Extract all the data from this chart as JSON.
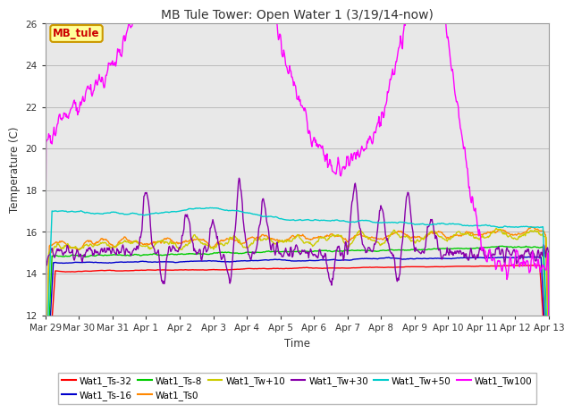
{
  "title": "MB Tule Tower: Open Water 1 (3/19/14-now)",
  "xlabel": "Time",
  "ylabel": "Temperature (C)",
  "ylim": [
    12,
    26
  ],
  "yticks": [
    12,
    14,
    16,
    18,
    20,
    22,
    24,
    26
  ],
  "x_labels": [
    "Mar 29",
    "Mar 30",
    "Mar 31",
    "Apr 1",
    "Apr 2",
    "Apr 3",
    "Apr 4",
    "Apr 5",
    "Apr 6",
    "Apr 7",
    "Apr 8",
    "Apr 9",
    "Apr 10",
    "Apr 11",
    "Apr 12",
    "Apr 13"
  ],
  "background_color": "#ffffff",
  "plot_bg_color": "#e8e8e8",
  "series": [
    {
      "name": "Wat1_Ts-32",
      "color": "#ff0000"
    },
    {
      "name": "Wat1_Ts-16",
      "color": "#0000cc"
    },
    {
      "name": "Wat1_Ts-8",
      "color": "#00cc00"
    },
    {
      "name": "Wat1_Ts0",
      "color": "#ff8800"
    },
    {
      "name": "Wat1_Tw+10",
      "color": "#cccc00"
    },
    {
      "name": "Wat1_Tw+30",
      "color": "#8800aa"
    },
    {
      "name": "Wat1_Tw+50",
      "color": "#00cccc"
    },
    {
      "name": "Wat1_Tw100",
      "color": "#ff00ff"
    }
  ],
  "annotation_text": "MB_tule",
  "annotation_color": "#cc0000",
  "annotation_bg": "#ffff99",
  "annotation_border": "#cc9900"
}
